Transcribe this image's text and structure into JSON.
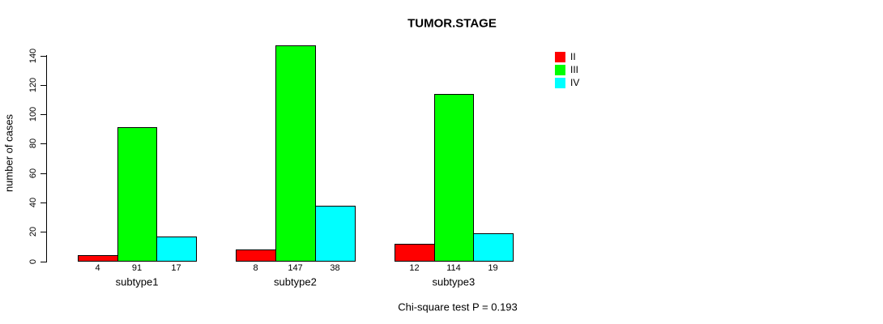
{
  "chart_data": {
    "type": "bar",
    "title": "TUMOR.STAGE",
    "ylabel": "number of cases",
    "xlabel": "",
    "caption": "Chi-square test P = 0.193",
    "categories": [
      "subtype1",
      "subtype2",
      "subtype3"
    ],
    "series": [
      {
        "name": "II",
        "color": "#ff0000",
        "values": [
          4,
          8,
          12
        ]
      },
      {
        "name": "III",
        "color": "#00ff00",
        "values": [
          91,
          147,
          114
        ]
      },
      {
        "name": "IV",
        "color": "#00ffff",
        "values": [
          17,
          38,
          19
        ]
      }
    ],
    "ylim": [
      0,
      140
    ],
    "yticks": [
      0,
      20,
      40,
      60,
      80,
      100,
      120,
      140
    ],
    "grid": false,
    "legend": {
      "position": "top-right",
      "entries": [
        {
          "label": "II",
          "color": "#ff0000"
        },
        {
          "label": "III",
          "color": "#00ff00"
        },
        {
          "label": "IV",
          "color": "#00ffff"
        }
      ]
    },
    "show_values_below_bars": true,
    "bar_border_color": "#000000",
    "background_color": "#ffffff"
  }
}
